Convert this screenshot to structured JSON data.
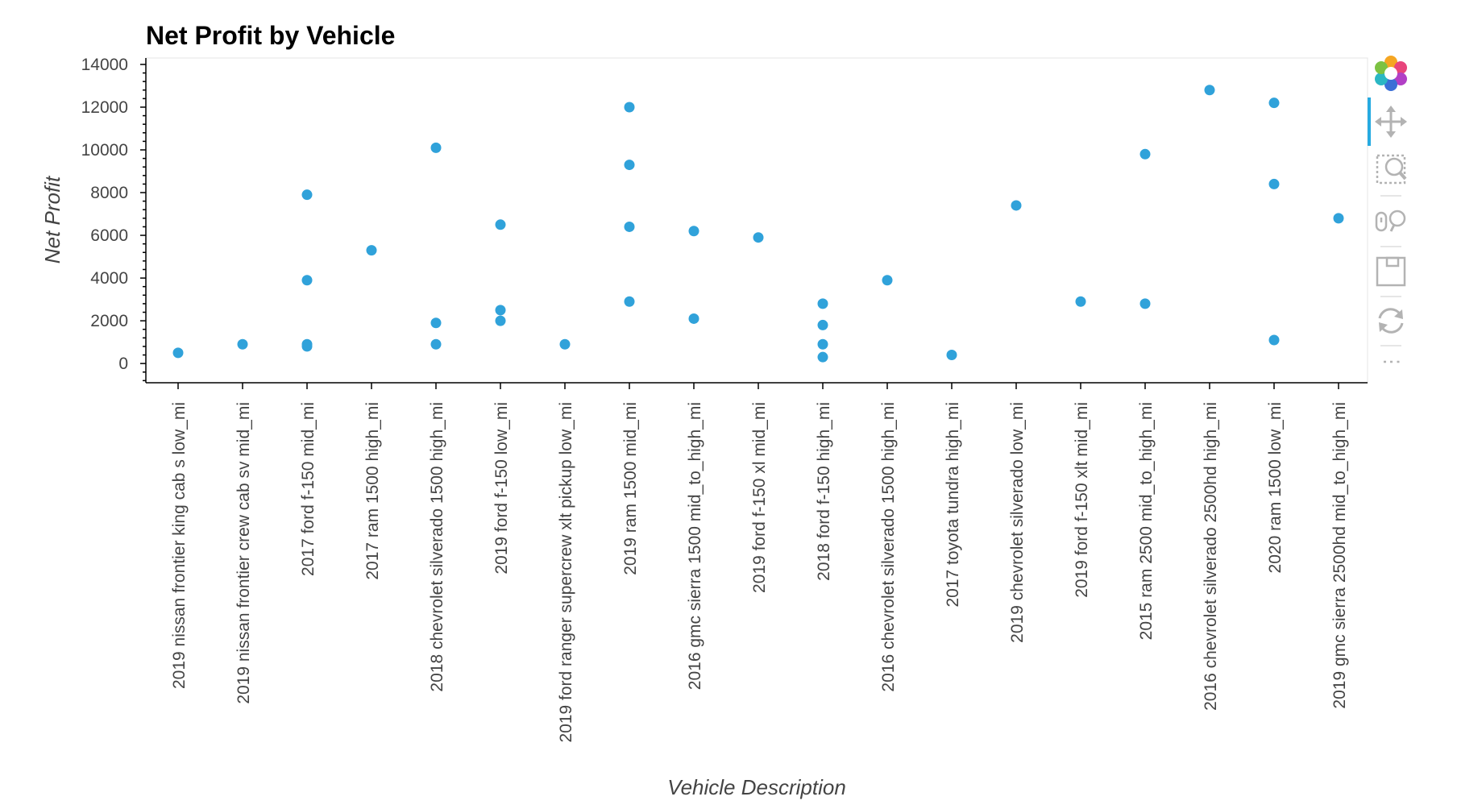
{
  "chart_data": {
    "type": "scatter",
    "title": "Net Profit by Vehicle",
    "xlabel": "Vehicle Description",
    "ylabel": "Net Profit",
    "ylim": [
      -900,
      14300
    ],
    "yticks": [
      0,
      2000,
      4000,
      6000,
      8000,
      10000,
      12000,
      14000
    ],
    "point_color": "#30a2da",
    "grid": false,
    "categories": [
      "2019 nissan frontier king cab s low_mi",
      "2019 nissan frontier crew cab sv mid_mi",
      "2017 ford f-150 mid_mi",
      "2017 ram 1500 high_mi",
      "2018 chevrolet silverado 1500 high_mi",
      "2019 ford f-150 low_mi",
      "2019 ford ranger supercrew xlt pickup low_mi",
      "2019 ram 1500 mid_mi",
      "2016 gmc sierra 1500 mid_to_high_mi",
      "2019 ford f-150 xl mid_mi",
      "2018 ford f-150 high_mi",
      "2016 chevrolet silverado 1500 high_mi",
      "2017 toyota tundra high_mi",
      "2019 chevrolet silverado low_mi",
      "2019 ford f-150 xlt mid_mi",
      "2015 ram 2500 mid_to_high_mi",
      "2016 chevrolet silverado 2500hd high_mi",
      "2020 ram 1500 low_mi",
      "2019 gmc sierra 2500hd mid_to_high_mi"
    ],
    "points": [
      {
        "category": "2019 nissan frontier king cab s low_mi",
        "y": 500
      },
      {
        "category": "2019 nissan frontier crew cab sv mid_mi",
        "y": 900
      },
      {
        "category": "2017 ford f-150 mid_mi",
        "y": 7900
      },
      {
        "category": "2017 ford f-150 mid_mi",
        "y": 3900
      },
      {
        "category": "2017 ford f-150 mid_mi",
        "y": 900
      },
      {
        "category": "2017 ford f-150 mid_mi",
        "y": 800
      },
      {
        "category": "2017 ram 1500 high_mi",
        "y": 5300
      },
      {
        "category": "2018 chevrolet silverado 1500 high_mi",
        "y": 10100
      },
      {
        "category": "2018 chevrolet silverado 1500 high_mi",
        "y": 1900
      },
      {
        "category": "2018 chevrolet silverado 1500 high_mi",
        "y": 900
      },
      {
        "category": "2019 ford f-150 low_mi",
        "y": 6500
      },
      {
        "category": "2019 ford f-150 low_mi",
        "y": 2500
      },
      {
        "category": "2019 ford f-150 low_mi",
        "y": 2000
      },
      {
        "category": "2019 ford ranger supercrew xlt pickup low_mi",
        "y": 900
      },
      {
        "category": "2019 ram 1500 mid_mi",
        "y": 12000
      },
      {
        "category": "2019 ram 1500 mid_mi",
        "y": 9300
      },
      {
        "category": "2019 ram 1500 mid_mi",
        "y": 6400
      },
      {
        "category": "2019 ram 1500 mid_mi",
        "y": 2900
      },
      {
        "category": "2016 gmc sierra 1500 mid_to_high_mi",
        "y": 6200
      },
      {
        "category": "2016 gmc sierra 1500 mid_to_high_mi",
        "y": 2100
      },
      {
        "category": "2019 ford f-150 xl mid_mi",
        "y": 5900
      },
      {
        "category": "2018 ford f-150 high_mi",
        "y": 2800
      },
      {
        "category": "2018 ford f-150 high_mi",
        "y": 1800
      },
      {
        "category": "2018 ford f-150 high_mi",
        "y": 900
      },
      {
        "category": "2018 ford f-150 high_mi",
        "y": 300
      },
      {
        "category": "2016 chevrolet silverado 1500 high_mi",
        "y": 3900
      },
      {
        "category": "2017 toyota tundra high_mi",
        "y": 400
      },
      {
        "category": "2019 chevrolet silverado low_mi",
        "y": 7400
      },
      {
        "category": "2019 ford f-150 xlt mid_mi",
        "y": 2900
      },
      {
        "category": "2015 ram 2500 mid_to_high_mi",
        "y": 9800
      },
      {
        "category": "2015 ram 2500 mid_to_high_mi",
        "y": 2800
      },
      {
        "category": "2016 chevrolet silverado 2500hd high_mi",
        "y": 12800
      },
      {
        "category": "2020 ram 1500 low_mi",
        "y": 12200
      },
      {
        "category": "2020 ram 1500 low_mi",
        "y": 8400
      },
      {
        "category": "2020 ram 1500 low_mi",
        "y": 1100
      },
      {
        "category": "2019 gmc sierra 2500hd mid_to_high_mi",
        "y": 6800
      }
    ]
  },
  "toolbar": {
    "logo": "bokeh-logo-icon",
    "tools": [
      {
        "name": "pan-tool-icon",
        "active": true
      },
      {
        "name": "box-zoom-tool-icon",
        "active": false
      },
      {
        "name": "wheel-zoom-tool-icon",
        "active": false
      },
      {
        "name": "save-tool-icon",
        "active": false
      },
      {
        "name": "reset-tool-icon",
        "active": false
      }
    ],
    "more_label": "⋮",
    "active_color": "#26aae1",
    "icon_color": "#b3b3b3"
  }
}
